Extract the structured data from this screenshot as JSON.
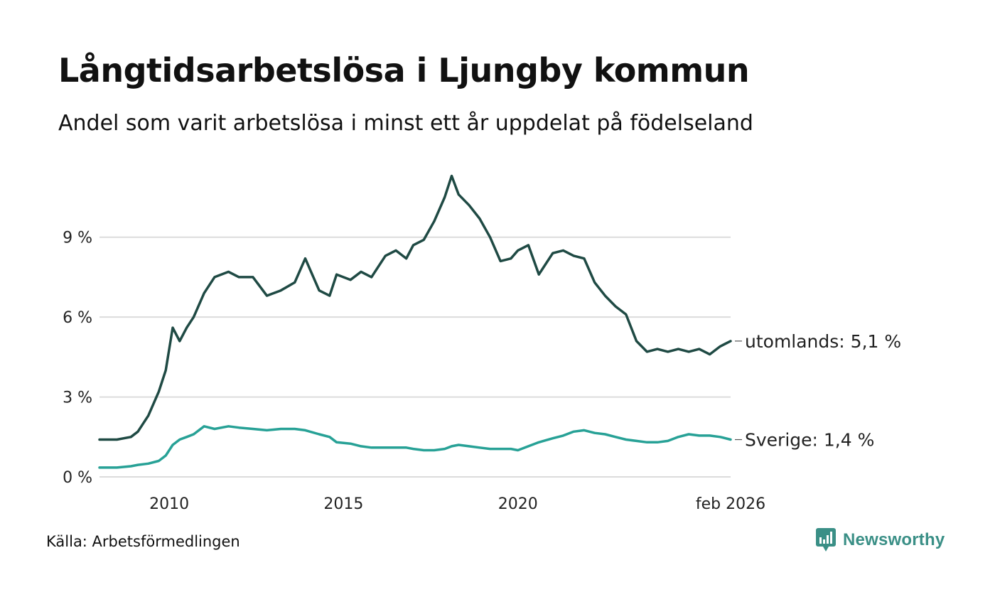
{
  "header": {
    "title": "Långtidsarbetslösa i Ljungby kommun",
    "subtitle": "Andel som varit arbetslösa i minst ett år uppdelat på födelseland"
  },
  "footer": {
    "source": "Källa: Arbetsförmedlingen",
    "brand": "Newsworthy",
    "brand_icon": "newsworthy-logo-icon"
  },
  "colors": {
    "utomlands": "#1f4a44",
    "sverige": "#27a196",
    "grid": "#dcdcdc",
    "brand": "#3a8f86"
  },
  "chart_data": {
    "type": "line",
    "title": "Långtidsarbetslösa i Ljungby kommun",
    "xlabel": "",
    "ylabel": "",
    "ylim": [
      0,
      11.5
    ],
    "xlim": [
      2008.0,
      2026.1
    ],
    "y_ticks": [
      {
        "value": 0,
        "label": "0 %"
      },
      {
        "value": 3,
        "label": "3 %"
      },
      {
        "value": 6,
        "label": "6 %"
      },
      {
        "value": 9,
        "label": "9 %"
      }
    ],
    "x_ticks": [
      {
        "value": 2010,
        "label": "2010"
      },
      {
        "value": 2015,
        "label": "2015"
      },
      {
        "value": 2020,
        "label": "2020"
      },
      {
        "value": 2026.1,
        "label": "feb 2026"
      }
    ],
    "grid": true,
    "series": [
      {
        "name": "utomlands",
        "end_label": "utomlands: 5,1 %",
        "color": "#1f4a44",
        "x": [
          2008.0,
          2008.5,
          2008.9,
          2009.1,
          2009.4,
          2009.7,
          2009.9,
          2010.1,
          2010.3,
          2010.5,
          2010.7,
          2011.0,
          2011.3,
          2011.7,
          2012.0,
          2012.4,
          2012.8,
          2013.2,
          2013.6,
          2013.9,
          2014.3,
          2014.6,
          2014.8,
          2015.2,
          2015.5,
          2015.8,
          2016.2,
          2016.5,
          2016.8,
          2017.0,
          2017.3,
          2017.6,
          2017.9,
          2018.1,
          2018.3,
          2018.6,
          2018.9,
          2019.2,
          2019.5,
          2019.8,
          2020.0,
          2020.3,
          2020.6,
          2021.0,
          2021.3,
          2021.6,
          2021.9,
          2022.2,
          2022.5,
          2022.8,
          2023.1,
          2023.4,
          2023.7,
          2024.0,
          2024.3,
          2024.6,
          2024.9,
          2025.2,
          2025.5,
          2025.8,
          2026.1
        ],
        "y": [
          1.4,
          1.4,
          1.5,
          1.7,
          2.3,
          3.2,
          4.0,
          5.6,
          5.1,
          5.6,
          6.0,
          6.9,
          7.5,
          7.7,
          7.5,
          7.5,
          6.8,
          7.0,
          7.3,
          8.2,
          7.0,
          6.8,
          7.6,
          7.4,
          7.7,
          7.5,
          8.3,
          8.5,
          8.2,
          8.7,
          8.9,
          9.6,
          10.5,
          11.3,
          10.6,
          10.2,
          9.7,
          9.0,
          8.1,
          8.2,
          8.5,
          8.7,
          7.6,
          8.4,
          8.5,
          8.3,
          8.2,
          7.3,
          6.8,
          6.4,
          6.1,
          5.1,
          4.7,
          4.8,
          4.7,
          4.8,
          4.7,
          4.8,
          4.6,
          4.9,
          5.1
        ]
      },
      {
        "name": "Sverige",
        "end_label": "Sverige: 1,4 %",
        "color": "#27a196",
        "x": [
          2008.0,
          2008.5,
          2008.9,
          2009.1,
          2009.4,
          2009.7,
          2009.9,
          2010.1,
          2010.3,
          2010.5,
          2010.7,
          2011.0,
          2011.3,
          2011.7,
          2012.0,
          2012.4,
          2012.8,
          2013.2,
          2013.6,
          2013.9,
          2014.3,
          2014.6,
          2014.8,
          2015.2,
          2015.5,
          2015.8,
          2016.2,
          2016.5,
          2016.8,
          2017.0,
          2017.3,
          2017.6,
          2017.9,
          2018.1,
          2018.3,
          2018.6,
          2018.9,
          2019.2,
          2019.5,
          2019.8,
          2020.0,
          2020.3,
          2020.6,
          2021.0,
          2021.3,
          2021.6,
          2021.9,
          2022.2,
          2022.5,
          2022.8,
          2023.1,
          2023.4,
          2023.7,
          2024.0,
          2024.3,
          2024.6,
          2024.9,
          2025.2,
          2025.5,
          2025.8,
          2026.1
        ],
        "y": [
          0.35,
          0.35,
          0.4,
          0.45,
          0.5,
          0.6,
          0.8,
          1.2,
          1.4,
          1.5,
          1.6,
          1.9,
          1.8,
          1.9,
          1.85,
          1.8,
          1.75,
          1.8,
          1.8,
          1.75,
          1.6,
          1.5,
          1.3,
          1.25,
          1.15,
          1.1,
          1.1,
          1.1,
          1.1,
          1.05,
          1.0,
          1.0,
          1.05,
          1.15,
          1.2,
          1.15,
          1.1,
          1.05,
          1.05,
          1.05,
          1.0,
          1.15,
          1.3,
          1.45,
          1.55,
          1.7,
          1.75,
          1.65,
          1.6,
          1.5,
          1.4,
          1.35,
          1.3,
          1.3,
          1.35,
          1.5,
          1.6,
          1.55,
          1.55,
          1.5,
          1.4
        ]
      }
    ]
  }
}
